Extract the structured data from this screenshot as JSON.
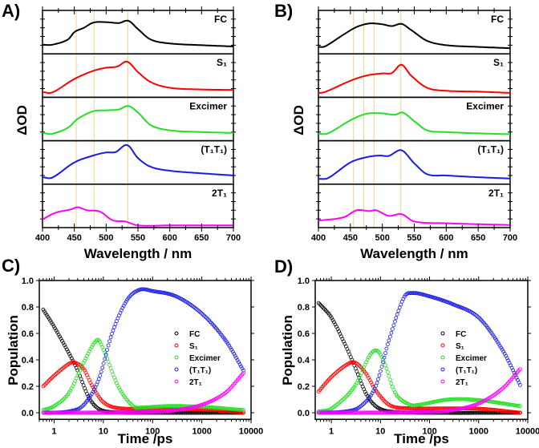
{
  "chart_data": [
    {
      "panel": "A)",
      "type": "line",
      "xlabel": "Wavelength / nm",
      "ylabel": "ΔOD",
      "xlim": [
        400,
        700
      ],
      "xticks": [
        400,
        450,
        500,
        550,
        600,
        650,
        700
      ],
      "ylim": [
        0,
        1
      ],
      "reference_lines_nm": [
        453,
        481,
        534
      ],
      "reference_line_color": "#f5d08a",
      "series": [
        {
          "name": "FC",
          "color": "#000000",
          "points": [
            [
              400,
              0.21
            ],
            [
              415,
              0.21
            ],
            [
              440,
              0.33
            ],
            [
              450,
              0.5
            ],
            [
              465,
              0.6
            ],
            [
              480,
              0.72
            ],
            [
              500,
              0.73
            ],
            [
              520,
              0.71
            ],
            [
              535,
              0.76
            ],
            [
              550,
              0.57
            ],
            [
              570,
              0.33
            ],
            [
              600,
              0.24
            ],
            [
              650,
              0.2
            ],
            [
              700,
              0.17
            ]
          ]
        },
        {
          "name": "S₁",
          "color": "#ff0000",
          "points": [
            [
              400,
              0.12
            ],
            [
              415,
              0.11
            ],
            [
              450,
              0.42
            ],
            [
              480,
              0.61
            ],
            [
              500,
              0.68
            ],
            [
              518,
              0.71
            ],
            [
              533,
              0.82
            ],
            [
              550,
              0.58
            ],
            [
              570,
              0.35
            ],
            [
              600,
              0.22
            ],
            [
              650,
              0.18
            ],
            [
              700,
              0.17
            ]
          ]
        },
        {
          "name": "Excimer",
          "color": "#22e022",
          "points": [
            [
              400,
              0.18
            ],
            [
              415,
              0.16
            ],
            [
              440,
              0.3
            ],
            [
              455,
              0.5
            ],
            [
              480,
              0.68
            ],
            [
              500,
              0.7
            ],
            [
              520,
              0.72
            ],
            [
              535,
              0.8
            ],
            [
              550,
              0.65
            ],
            [
              570,
              0.36
            ],
            [
              600,
              0.24
            ],
            [
              650,
              0.2
            ],
            [
              700,
              0.18
            ]
          ]
        },
        {
          "name": "(T₁T₁)",
          "color": "#1a1ae6",
          "points": [
            [
              400,
              0.16
            ],
            [
              415,
              0.15
            ],
            [
              450,
              0.5
            ],
            [
              480,
              0.66
            ],
            [
              500,
              0.73
            ],
            [
              515,
              0.74
            ],
            [
              533,
              0.9
            ],
            [
              550,
              0.6
            ],
            [
              570,
              0.4
            ],
            [
              600,
              0.31
            ],
            [
              650,
              0.25
            ],
            [
              700,
              0.2
            ]
          ]
        },
        {
          "name": "2T₁",
          "color": "#ff00ff",
          "points": [
            [
              400,
              0.19
            ],
            [
              420,
              0.34
            ],
            [
              445,
              0.42
            ],
            [
              455,
              0.47
            ],
            [
              470,
              0.4
            ],
            [
              490,
              0.37
            ],
            [
              510,
              0.17
            ],
            [
              530,
              0.14
            ],
            [
              550,
              0.05
            ],
            [
              600,
              0.05
            ],
            [
              700,
              0.05
            ]
          ]
        }
      ]
    },
    {
      "panel": "B)",
      "type": "line",
      "xlabel": "Wavelength / nm",
      "ylabel": "ΔOD",
      "xlim": [
        400,
        700
      ],
      "xticks": [
        400,
        450,
        500,
        550,
        600,
        650,
        700
      ],
      "ylim": [
        0,
        1
      ],
      "reference_lines_nm": [
        455,
        471,
        487,
        529
      ],
      "reference_line_color": "#f5d08a",
      "series": [
        {
          "name": "FC",
          "color": "#000000",
          "points": [
            [
              400,
              0.16
            ],
            [
              410,
              0.17
            ],
            [
              440,
              0.45
            ],
            [
              460,
              0.62
            ],
            [
              480,
              0.7
            ],
            [
              500,
              0.68
            ],
            [
              515,
              0.64
            ],
            [
              530,
              0.69
            ],
            [
              545,
              0.55
            ],
            [
              570,
              0.3
            ],
            [
              600,
              0.2
            ],
            [
              650,
              0.16
            ],
            [
              700,
              0.13
            ]
          ]
        },
        {
          "name": "S₁",
          "color": "#ff0000",
          "points": [
            [
              400,
              0.1
            ],
            [
              410,
              0.12
            ],
            [
              450,
              0.38
            ],
            [
              475,
              0.5
            ],
            [
              500,
              0.55
            ],
            [
              515,
              0.56
            ],
            [
              530,
              0.75
            ],
            [
              545,
              0.5
            ],
            [
              570,
              0.22
            ],
            [
              600,
              0.15
            ],
            [
              650,
              0.13
            ],
            [
              700,
              0.1
            ]
          ]
        },
        {
          "name": "Excimer",
          "color": "#22e022",
          "points": [
            [
              400,
              0.16
            ],
            [
              415,
              0.17
            ],
            [
              450,
              0.47
            ],
            [
              475,
              0.62
            ],
            [
              500,
              0.63
            ],
            [
              520,
              0.6
            ],
            [
              532,
              0.65
            ],
            [
              550,
              0.45
            ],
            [
              570,
              0.24
            ],
            [
              600,
              0.2
            ],
            [
              650,
              0.17
            ],
            [
              700,
              0.15
            ]
          ]
        },
        {
          "name": "(T₁T₁)",
          "color": "#1a1ae6",
          "points": [
            [
              400,
              0.12
            ],
            [
              415,
              0.14
            ],
            [
              450,
              0.5
            ],
            [
              475,
              0.62
            ],
            [
              495,
              0.66
            ],
            [
              510,
              0.65
            ],
            [
              530,
              0.78
            ],
            [
              550,
              0.48
            ],
            [
              570,
              0.23
            ],
            [
              600,
              0.2
            ],
            [
              650,
              0.16
            ],
            [
              700,
              0.13
            ]
          ]
        },
        {
          "name": "2T₁",
          "color": "#ff00ff",
          "points": [
            [
              400,
              0.16
            ],
            [
              440,
              0.24
            ],
            [
              460,
              0.4
            ],
            [
              480,
              0.38
            ],
            [
              490,
              0.4
            ],
            [
              510,
              0.27
            ],
            [
              530,
              0.31
            ],
            [
              550,
              0.14
            ],
            [
              600,
              0.1
            ],
            [
              700,
              0.06
            ]
          ]
        }
      ]
    },
    {
      "panel": "C)",
      "type": "scatter",
      "xlabel": "Time /ps",
      "ylabel": "Population",
      "xscale": "log",
      "xlim": [
        0.5,
        10000
      ],
      "ylim": [
        -0.05,
        1.0
      ],
      "xticks": [
        1,
        10,
        100,
        1000,
        10000
      ],
      "xticklabels": [
        "1",
        "10",
        "100",
        "1000",
        "10000"
      ],
      "yticks": [
        0,
        0.2,
        0.4,
        0.6,
        0.8,
        1.0
      ],
      "yticklabels": [
        "0.0",
        "0.2",
        "0.4",
        "0.6",
        "0.8",
        "1.0"
      ],
      "legend_position": "center-right",
      "series": [
        {
          "name": "FC",
          "color": "#000000",
          "points": [
            [
              0.6,
              0.78
            ],
            [
              1,
              0.65
            ],
            [
              2,
              0.45
            ],
            [
              3,
              0.32
            ],
            [
              5,
              0.12
            ],
            [
              8,
              0.03
            ],
            [
              15,
              0.005
            ],
            [
              100,
              0
            ],
            [
              7000,
              0
            ]
          ]
        },
        {
          "name": "S₁",
          "color": "#ff0000",
          "points": [
            [
              0.6,
              0.2
            ],
            [
              1,
              0.28
            ],
            [
              2,
              0.37
            ],
            [
              2.6,
              0.38
            ],
            [
              4,
              0.33
            ],
            [
              6,
              0.2
            ],
            [
              10,
              0.08
            ],
            [
              20,
              0.035
            ],
            [
              100,
              0.03
            ],
            [
              1000,
              0.025
            ],
            [
              7000,
              0
            ]
          ]
        },
        {
          "name": "Excimer",
          "color": "#22e022",
          "points": [
            [
              0.6,
              0.02
            ],
            [
              1,
              0.05
            ],
            [
              2,
              0.15
            ],
            [
              4,
              0.38
            ],
            [
              7.5,
              0.55
            ],
            [
              10,
              0.48
            ],
            [
              20,
              0.2
            ],
            [
              40,
              0.05
            ],
            [
              60,
              0.04
            ],
            [
              200,
              0.05
            ],
            [
              1000,
              0.045
            ],
            [
              7000,
              0.02
            ]
          ]
        },
        {
          "name": "(T₁T₁)",
          "color": "#1a1ae6",
          "points": [
            [
              0.6,
              0
            ],
            [
              2,
              0.01
            ],
            [
              4,
              0.06
            ],
            [
              8,
              0.25
            ],
            [
              15,
              0.6
            ],
            [
              30,
              0.85
            ],
            [
              55,
              0.93
            ],
            [
              100,
              0.92
            ],
            [
              300,
              0.88
            ],
            [
              1000,
              0.75
            ],
            [
              3000,
              0.55
            ],
            [
              7000,
              0.32
            ]
          ]
        },
        {
          "name": "2T₁",
          "color": "#ff00ff",
          "points": [
            [
              0.6,
              0
            ],
            [
              100,
              0.005
            ],
            [
              300,
              0.02
            ],
            [
              1000,
              0.06
            ],
            [
              3000,
              0.15
            ],
            [
              7000,
              0.3
            ]
          ]
        }
      ]
    },
    {
      "panel": "D)",
      "type": "scatter",
      "xlabel": "Time /ps",
      "ylabel": "Population",
      "xscale": "log",
      "xlim": [
        0.47,
        10000
      ],
      "ylim": [
        -0.05,
        1.0
      ],
      "xticks": [
        1,
        10,
        100,
        1000,
        10000
      ],
      "xticklabels": [
        "1",
        "10",
        "100",
        "1000",
        "10000"
      ],
      "yticks": [
        0,
        0.2,
        0.4,
        0.6,
        0.8,
        1.0
      ],
      "yticklabels": [
        "0.0",
        "0.2",
        "0.4",
        "0.6",
        "0.8",
        "1.0"
      ],
      "legend_position": "center-right",
      "series": [
        {
          "name": "FC",
          "color": "#000000",
          "points": [
            [
              0.55,
              0.83
            ],
            [
              1,
              0.72
            ],
            [
              2,
              0.5
            ],
            [
              3,
              0.35
            ],
            [
              5,
              0.15
            ],
            [
              8,
              0.05
            ],
            [
              15,
              0.01
            ],
            [
              100,
              0
            ],
            [
              7000,
              0
            ]
          ]
        },
        {
          "name": "S₁",
          "color": "#ff0000",
          "points": [
            [
              0.55,
              0.16
            ],
            [
              1,
              0.27
            ],
            [
              2,
              0.36
            ],
            [
              3,
              0.38
            ],
            [
              5,
              0.3
            ],
            [
              8,
              0.17
            ],
            [
              15,
              0.06
            ],
            [
              30,
              0.035
            ],
            [
              1000,
              0.03
            ],
            [
              7000,
              0
            ]
          ]
        },
        {
          "name": "Excimer",
          "color": "#22e022",
          "points": [
            [
              0.55,
              0.01
            ],
            [
              1,
              0.03
            ],
            [
              3,
              0.2
            ],
            [
              6,
              0.43
            ],
            [
              8.5,
              0.47
            ],
            [
              12,
              0.38
            ],
            [
              20,
              0.15
            ],
            [
              40,
              0.06
            ],
            [
              60,
              0.06
            ],
            [
              250,
              0.1
            ],
            [
              1000,
              0.095
            ],
            [
              7000,
              0.05
            ]
          ]
        },
        {
          "name": "(T₁T₁)",
          "color": "#1a1ae6",
          "points": [
            [
              0.55,
              0
            ],
            [
              2,
              0.01
            ],
            [
              4,
              0.05
            ],
            [
              8,
              0.2
            ],
            [
              15,
              0.55
            ],
            [
              30,
              0.87
            ],
            [
              45,
              0.905
            ],
            [
              100,
              0.88
            ],
            [
              300,
              0.82
            ],
            [
              1000,
              0.72
            ],
            [
              3000,
              0.48
            ],
            [
              7000,
              0.21
            ]
          ]
        },
        {
          "name": "2T₁",
          "color": "#ff00ff",
          "points": [
            [
              0.55,
              0
            ],
            [
              100,
              0.005
            ],
            [
              300,
              0.02
            ],
            [
              1000,
              0.07
            ],
            [
              3000,
              0.18
            ],
            [
              7000,
              0.33
            ]
          ]
        }
      ]
    }
  ]
}
